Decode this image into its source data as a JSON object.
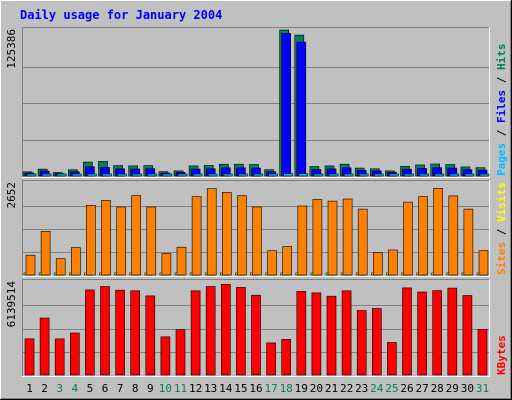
{
  "chart_data": {
    "title": "Daily usage for January 2004",
    "type": "bar",
    "days": [
      "1",
      "2",
      "3",
      "4",
      "5",
      "6",
      "7",
      "8",
      "9",
      "10",
      "11",
      "12",
      "13",
      "14",
      "15",
      "16",
      "17",
      "18",
      "19",
      "20",
      "21",
      "22",
      "23",
      "24",
      "25",
      "26",
      "27",
      "28",
      "29",
      "30",
      "31"
    ],
    "weekend_days": [
      "3",
      "4",
      "10",
      "11",
      "17",
      "18",
      "24",
      "25",
      "31"
    ],
    "colors": {
      "background": "#c0c0c0",
      "title": "#0000ff",
      "hits": "#00805c",
      "files": "#0000ff",
      "pages": "#00c0ff",
      "visits": "#ffff00",
      "sites": "#ff8000",
      "kbytes": "#ff0000",
      "weekday_label": "#000000",
      "weekend_label": "#00805c",
      "grid": "#808080"
    },
    "panels": [
      {
        "id": "hits-panel",
        "max_label": "125386",
        "ymax": 125386,
        "axis_labels": [
          {
            "text": "Pages",
            "color": "#00c0ff"
          },
          {
            "text": " / ",
            "color": "#000000"
          },
          {
            "text": "Files",
            "color": "#0000ff"
          },
          {
            "text": " / ",
            "color": "#000000"
          },
          {
            "text": "Hits",
            "color": "#00805c"
          }
        ],
        "series": [
          {
            "name": "Hits",
            "color": "#00805c",
            "values": [
              3600,
              5900,
              3000,
              5300,
              11900,
              12600,
              8900,
              8700,
              8900,
              3700,
              4400,
              8700,
              9100,
              10100,
              10100,
              9900,
              5400,
              126500,
              121000,
              8200,
              8700,
              10100,
              6800,
              6200,
              4400,
              8300,
              9500,
              10300,
              9900,
              7800,
              7100
            ]
          },
          {
            "name": "Files",
            "color": "#0000ff",
            "values": [
              2600,
              4300,
              2100,
              3600,
              7900,
              7400,
              6200,
              6000,
              6300,
              2600,
              3200,
              5900,
              6300,
              7000,
              7000,
              6800,
              3800,
              122500,
              115000,
              5600,
              6100,
              7000,
              4800,
              4400,
              3200,
              5800,
              6500,
              7100,
              6800,
              5400,
              5000
            ]
          },
          {
            "name": "Pages",
            "color": "#00c0ff",
            "values": [
              600,
              1100,
              500,
              900,
              1700,
              1800,
              1300,
              1300,
              1300,
              600,
              700,
              1300,
              1400,
              1500,
              1500,
              1500,
              800,
              2000,
              2000,
              1200,
              1300,
              1500,
              1000,
              900,
              700,
              1200,
              1400,
              1500,
              1500,
              1200,
              1100
            ]
          }
        ]
      },
      {
        "id": "visits-panel",
        "max_label": "2652",
        "ymax": 2652,
        "axis_labels": [
          {
            "text": "Sites",
            "color": "#ff8000"
          },
          {
            "text": " / ",
            "color": "#000000"
          },
          {
            "text": "Visits",
            "color": "#ffff00"
          }
        ],
        "series": [
          {
            "name": "Visits",
            "color": "#ffff00",
            "values": [
              30,
              30,
              30,
              30,
              30,
              30,
              30,
              30,
              30,
              30,
              30,
              30,
              30,
              30,
              30,
              30,
              30,
              30,
              30,
              30,
              30,
              30,
              30,
              30,
              30,
              30,
              30,
              30,
              30,
              30,
              30
            ]
          },
          {
            "name": "Sites",
            "color": "#ff8000",
            "values": [
              570,
              1260,
              470,
              790,
              2010,
              2150,
              1960,
              2290,
              1960,
              620,
              800,
              2260,
              2490,
              2380,
              2290,
              1960,
              700,
              820,
              1990,
              2180,
              2130,
              2190,
              1900,
              650,
              720,
              2100,
              2260,
              2500,
              2280,
              1900,
              700
            ]
          }
        ]
      },
      {
        "id": "kbytes-panel",
        "max_label": "6139514",
        "ymax": 6139514,
        "axis_labels": [
          {
            "text": "KBytes",
            "color": "#ff0000"
          }
        ],
        "series": [
          {
            "name": "KBytes",
            "color": "#ff0000",
            "values": [
              2390000,
              3760000,
              2380000,
              2770000,
              5620000,
              5840000,
              5600000,
              5560000,
              5220000,
              2520000,
              2990000,
              5560000,
              5840000,
              5990000,
              5780000,
              5270000,
              2120000,
              2350000,
              5520000,
              5420000,
              5200000,
              5560000,
              4260000,
              4390000,
              2150000,
              5750000,
              5480000,
              5570000,
              5740000,
              5250000,
              3010000
            ]
          }
        ]
      }
    ]
  }
}
